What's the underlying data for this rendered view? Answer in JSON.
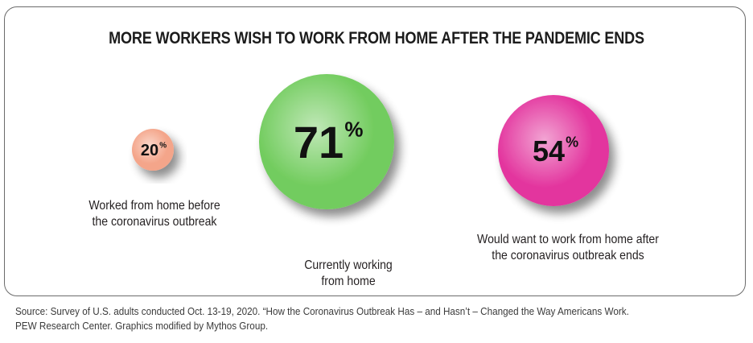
{
  "chart_data": {
    "type": "bubble",
    "title": "MORE WORKERS WISH TO WORK FROM HOME AFTER THE PANDEMIC ENDS",
    "unit": "%",
    "series": [
      {
        "value": 20,
        "label": "20",
        "caption_lines": [
          "Worked from home before",
          "the coronavirus outbreak"
        ],
        "color": "#f4a58a"
      },
      {
        "value": 71,
        "label": "71",
        "caption_lines": [
          "Currently working",
          "from home"
        ],
        "color": "#72cc5e"
      },
      {
        "value": 54,
        "label": "54",
        "caption_lines": [
          "Would want to work from home after",
          "the coronavirus outbreak ends"
        ],
        "color": "#e3359e"
      }
    ]
  },
  "footer": {
    "source_lines": [
      "Source: Survey of U.S. adults conducted Oct. 13-19, 2020. “How the Coronavirus Outbreak Has – and Hasn’t – Changed the Way Americans Work.",
      "PEW Research Center. Graphics modified by Mythos Group."
    ]
  }
}
